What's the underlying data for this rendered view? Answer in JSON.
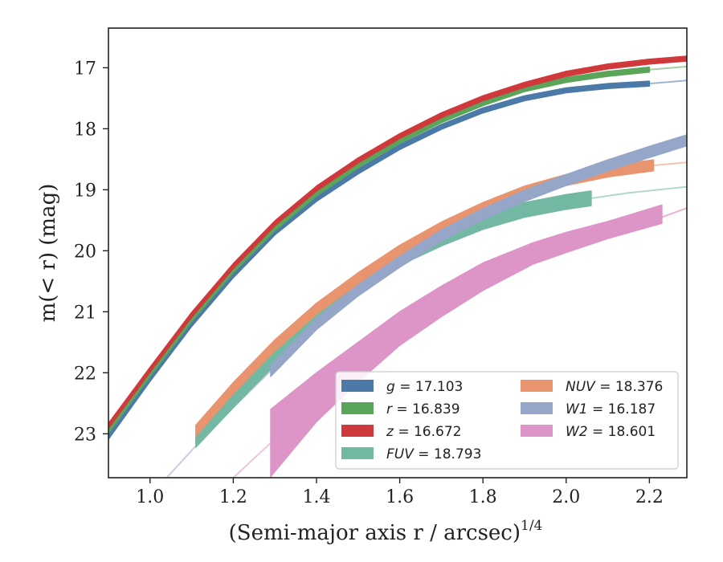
{
  "chart_data": {
    "type": "line",
    "xlabel": "(Semi-major axis r / arcsec)",
    "xlabel_exponent": "1/4",
    "ylabel": "m(< r) (mag)",
    "xlim": [
      0.9,
      2.29
    ],
    "ylim": [
      23.72,
      16.35
    ],
    "y_inverted": true,
    "x_ticks": [
      1.0,
      1.2,
      1.4,
      1.6,
      1.8,
      2.0,
      2.2
    ],
    "x_tick_labels": [
      "1.0",
      "1.2",
      "1.4",
      "1.6",
      "1.8",
      "2.0",
      "2.2"
    ],
    "y_ticks": [
      17,
      18,
      19,
      20,
      21,
      22,
      23
    ],
    "y_tick_labels": [
      "17",
      "18",
      "19",
      "20",
      "21",
      "22",
      "23"
    ],
    "grid": false,
    "legend_position": "lower-right",
    "series": [
      {
        "name": "g",
        "legend": "g = 17.103",
        "color": "#4c7aa8",
        "x": [
          0.9,
          1.0,
          1.1,
          1.2,
          1.3,
          1.4,
          1.5,
          1.6,
          1.7,
          1.8,
          1.9,
          2.0,
          2.1,
          2.2
        ],
        "y": [
          23.05,
          22.1,
          21.2,
          20.4,
          19.7,
          19.15,
          18.7,
          18.3,
          17.97,
          17.7,
          17.5,
          17.37,
          17.3,
          17.26
        ],
        "x_faint": [
          2.2,
          2.29
        ],
        "y_faint": [
          17.26,
          17.21
        ],
        "band": 0.04
      },
      {
        "name": "r",
        "legend": "r = 16.839",
        "color": "#5aa55a",
        "x": [
          0.9,
          1.0,
          1.1,
          1.2,
          1.3,
          1.4,
          1.5,
          1.6,
          1.7,
          1.8,
          1.9,
          2.0,
          2.1,
          2.2
        ],
        "y": [
          22.95,
          22.02,
          21.12,
          20.32,
          19.63,
          19.06,
          18.6,
          18.2,
          17.86,
          17.58,
          17.35,
          17.2,
          17.1,
          17.03
        ],
        "x_faint": [
          2.2,
          2.29
        ],
        "y_faint": [
          17.03,
          16.98
        ],
        "band": 0.04
      },
      {
        "name": "z",
        "legend": "z = 16.672",
        "color": "#d0393b",
        "x": [
          0.9,
          1.0,
          1.1,
          1.2,
          1.3,
          1.4,
          1.5,
          1.6,
          1.7,
          1.8,
          1.9,
          2.0,
          2.1,
          2.2,
          2.29
        ],
        "y": [
          22.87,
          21.95,
          21.05,
          20.25,
          19.55,
          18.98,
          18.52,
          18.12,
          17.78,
          17.5,
          17.28,
          17.1,
          16.98,
          16.9,
          16.85
        ],
        "x_faint": [],
        "y_faint": [],
        "band": 0.04
      },
      {
        "name": "FUV",
        "legend": "FUV = 18.793",
        "color": "#72b8a2",
        "x": [
          1.11,
          1.2,
          1.3,
          1.4,
          1.5,
          1.6,
          1.7,
          1.8,
          1.9,
          2.0,
          2.06
        ],
        "y": [
          23.1,
          22.45,
          21.75,
          21.1,
          20.6,
          20.12,
          19.8,
          19.53,
          19.33,
          19.2,
          19.14
        ],
        "x_faint": [
          2.06,
          2.15,
          2.29
        ],
        "y_faint": [
          19.14,
          19.05,
          18.95
        ],
        "band": 0.12
      },
      {
        "name": "NUV",
        "legend": "NUV = 18.376",
        "color": "#e8956f",
        "x": [
          1.11,
          1.2,
          1.3,
          1.4,
          1.5,
          1.6,
          1.7,
          1.8,
          1.9,
          2.0,
          2.1,
          2.21
        ],
        "y": [
          22.95,
          22.25,
          21.55,
          20.95,
          20.45,
          20.0,
          19.62,
          19.3,
          19.03,
          18.84,
          18.7,
          18.6
        ],
        "x_faint": [
          2.21,
          2.29
        ],
        "y_faint": [
          18.6,
          18.55
        ],
        "band": 0.09
      },
      {
        "name": "W1",
        "legend": "W1 = 16.187",
        "color": "#95a6c8",
        "x": [
          1.29,
          1.35,
          1.4,
          1.5,
          1.6,
          1.7,
          1.8,
          1.9,
          2.0,
          2.1,
          2.2,
          2.29
        ],
        "y": [
          21.97,
          21.55,
          21.2,
          20.65,
          20.18,
          19.75,
          19.4,
          19.1,
          18.84,
          18.6,
          18.38,
          18.19
        ],
        "x_faint": [
          1.04,
          1.15,
          1.29
        ],
        "y_faint": [
          23.72,
          22.9,
          21.97
        ],
        "band": 0.09
      },
      {
        "name": "W2",
        "legend": "W2 = 18.601",
        "color": "#dc95c6",
        "x": [
          1.29,
          1.4,
          1.5,
          1.6,
          1.7,
          1.8,
          1.92,
          2.0,
          2.1,
          2.23
        ],
        "y": [
          23.15,
          22.4,
          21.8,
          21.25,
          20.8,
          20.4,
          20.02,
          19.85,
          19.65,
          19.45
        ],
        "x_faint": [
          1.2,
          1.29
        ],
        "y_faint": [
          23.72,
          23.15
        ],
        "x_faint_right": [
          2.23,
          2.29
        ],
        "y_faint_right": [
          19.45,
          19.3
        ],
        "band_top": [
          0.55,
          0.4,
          0.3,
          0.25,
          0.22,
          0.2,
          0.15,
          0.15,
          0.13,
          0.2
        ],
        "band_bottom": [
          0.55,
          0.4,
          0.35,
          0.3,
          0.28,
          0.25,
          0.2,
          0.18,
          0.15,
          0.1
        ]
      }
    ],
    "legend_columns": [
      [
        "g",
        "r",
        "z",
        "FUV"
      ],
      [
        "NUV",
        "W1",
        "W2"
      ]
    ]
  }
}
